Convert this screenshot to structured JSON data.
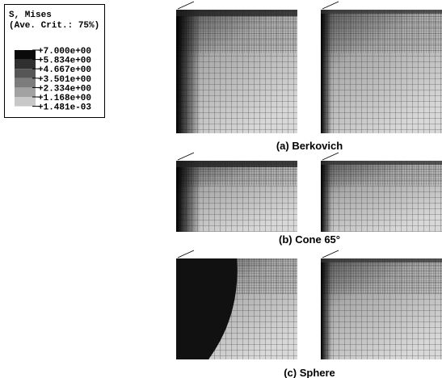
{
  "legend": {
    "title": "S, Mises",
    "subtitle": "(Ave. Crit.: 75%)",
    "levels": [
      "+7.000e+00",
      "+5.834e+00",
      "+4.667e+00",
      "+3.501e+00",
      "+2.334e+00",
      "+1.168e+00",
      "+1.481e-03"
    ]
  },
  "panels": [
    {
      "caption": "(a) Berkovich"
    },
    {
      "caption": "(b) Cone 65°"
    },
    {
      "caption": "(c) Sphere"
    }
  ]
}
